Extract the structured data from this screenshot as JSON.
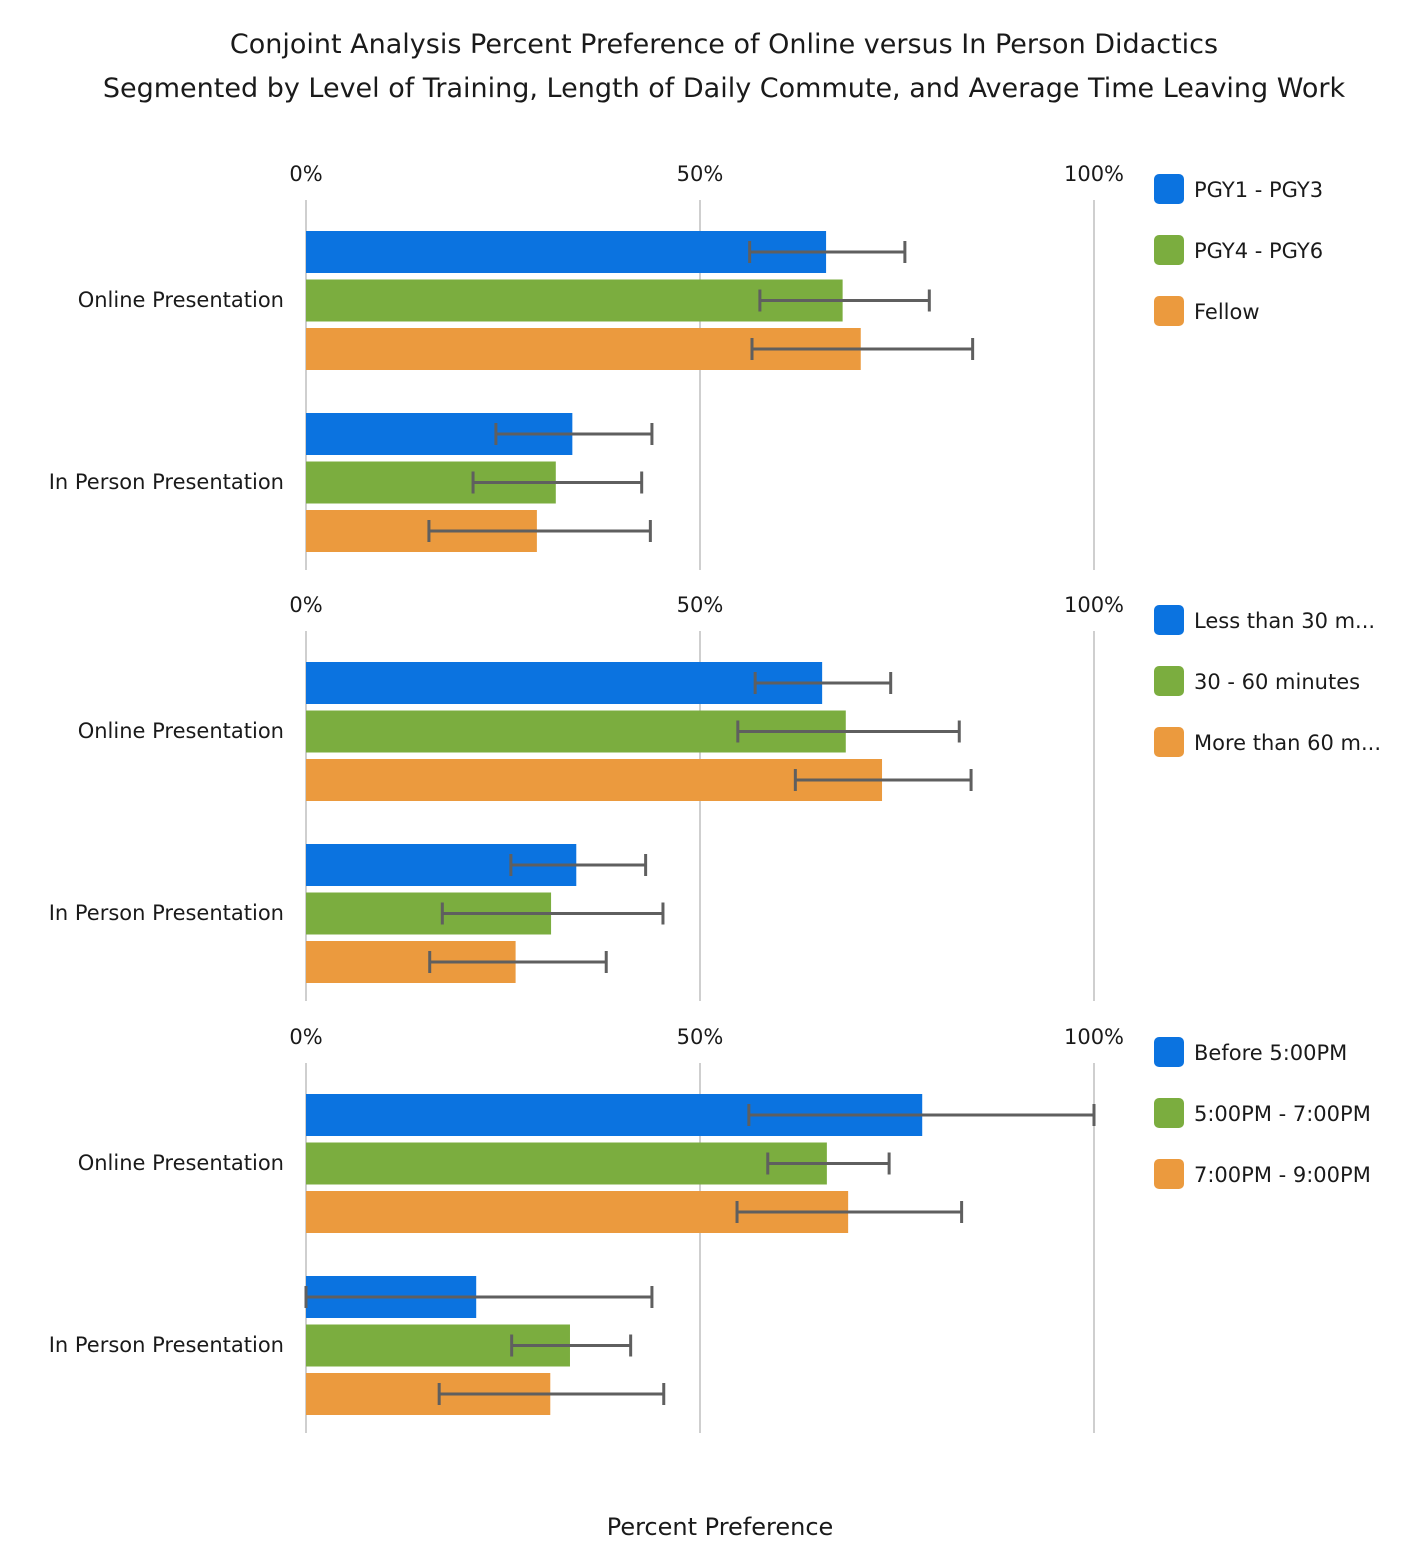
{
  "chart_data": {
    "type": "bar",
    "orientation": "horizontal",
    "title": [
      "Conjoint Analysis Percent Preference of Online versus In Person Didactics",
      "Segmented by Level of Training, Length of Daily Commute, and Average Time Leaving Work"
    ],
    "xlabel": "Percent Preference",
    "xlim": [
      0,
      100
    ],
    "xticks": [
      "0%",
      "50%",
      "100%"
    ],
    "grid": true,
    "legend_position": "right",
    "colors": [
      "#0b73e0",
      "#7bad3f",
      "#eb9a3e"
    ],
    "error_color": "#5f5f5f",
    "panels": [
      {
        "categories": [
          "Online Presentation",
          "In Person Presentation"
        ],
        "series": [
          {
            "name": "PGY1 - PGY3",
            "values": [
              66.0,
              33.8
            ],
            "error_low": [
              56.3,
              24.1
            ],
            "error_high": [
              76.0,
              43.9
            ]
          },
          {
            "name": "PGY4 - PGY6",
            "values": [
              68.1,
              31.7
            ],
            "error_low": [
              57.6,
              21.2
            ],
            "error_high": [
              79.1,
              42.6
            ]
          },
          {
            "name": "Fellow",
            "values": [
              70.4,
              29.3
            ],
            "error_low": [
              56.6,
              15.6
            ],
            "error_high": [
              84.6,
              43.7
            ]
          }
        ]
      },
      {
        "categories": [
          "Online Presentation",
          "In Person Presentation"
        ],
        "series": [
          {
            "name": "Less than 30 m...",
            "values": [
              65.5,
              34.3
            ],
            "error_low": [
              57.0,
              26.0
            ],
            "error_high": [
              74.2,
              43.1
            ]
          },
          {
            "name": "30 - 60 minutes",
            "values": [
              68.5,
              31.1
            ],
            "error_low": [
              54.8,
              17.3
            ],
            "error_high": [
              82.9,
              45.3
            ]
          },
          {
            "name": "More than 60 m...",
            "values": [
              73.1,
              26.6
            ],
            "error_low": [
              62.1,
              15.7
            ],
            "error_high": [
              84.4,
              38.1
            ]
          }
        ]
      },
      {
        "categories": [
          "Online Presentation",
          "In Person Presentation"
        ],
        "series": [
          {
            "name": "Before 5:00PM",
            "values": [
              78.2,
              21.6
            ],
            "error_low": [
              56.2,
              0
            ],
            "error_high": [
              100,
              43.9
            ]
          },
          {
            "name": "5:00PM - 7:00PM",
            "values": [
              66.1,
              33.5
            ],
            "error_low": [
              58.6,
              26.1
            ],
            "error_high": [
              74.0,
              41.2
            ]
          },
          {
            "name": "7:00PM - 9:00PM",
            "values": [
              68.8,
              31.0
            ],
            "error_low": [
              54.7,
              16.9
            ],
            "error_high": [
              83.2,
              45.4
            ]
          }
        ]
      }
    ]
  }
}
